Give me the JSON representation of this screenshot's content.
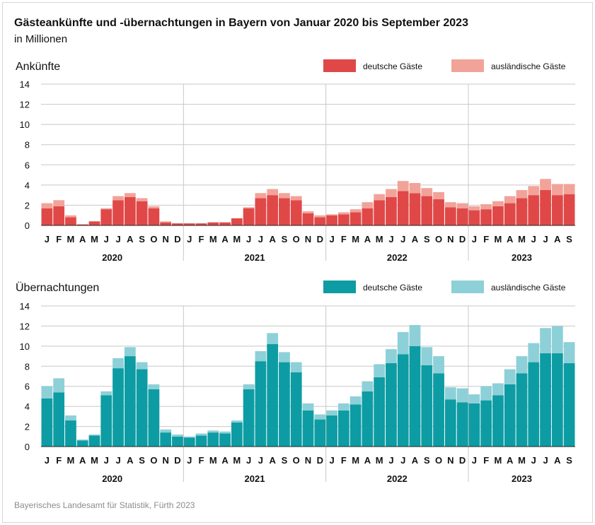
{
  "title": "Gästeankünfte und -übernachtungen in Bayern von Januar 2020 bis September 2023",
  "subtitle": "in Millionen",
  "source": "Bayerisches Landesamt für Statistik, Fürth 2023",
  "colors": {
    "arrivals_domestic": "#e04848",
    "arrivals_foreign": "#f2a399",
    "nights_domestic": "#0d9ca3",
    "nights_foreign": "#8dd0d8",
    "grid": "#c8c8c8"
  },
  "chart_data": [
    {
      "type": "bar",
      "stacked": true,
      "title": "Ankünfte",
      "ylim": [
        0,
        14
      ],
      "yticks": [
        0,
        2,
        4,
        6,
        8,
        10,
        12,
        14
      ],
      "grid": true,
      "legend_position": "top-right",
      "months": [
        "J",
        "F",
        "M",
        "A",
        "M",
        "J",
        "J",
        "A",
        "S",
        "O",
        "N",
        "D",
        "J",
        "F",
        "M",
        "A",
        "M",
        "J",
        "J",
        "A",
        "S",
        "O",
        "N",
        "D",
        "J",
        "F",
        "M",
        "A",
        "M",
        "J",
        "J",
        "A",
        "S",
        "O",
        "N",
        "D",
        "J",
        "F",
        "M",
        "A",
        "M",
        "J",
        "J",
        "A",
        "S"
      ],
      "years": [
        {
          "label": "2020",
          "start": 0,
          "count": 12
        },
        {
          "label": "2021",
          "start": 12,
          "count": 12
        },
        {
          "label": "2022",
          "start": 24,
          "count": 12
        },
        {
          "label": "2023",
          "start": 36,
          "count": 9
        }
      ],
      "series": [
        {
          "name": "deutsche Gäste",
          "values": [
            1.7,
            1.9,
            0.8,
            0.1,
            0.4,
            1.6,
            2.5,
            2.8,
            2.4,
            1.7,
            0.3,
            0.2,
            0.2,
            0.2,
            0.3,
            0.3,
            0.7,
            1.7,
            2.7,
            3.0,
            2.7,
            2.5,
            1.2,
            0.8,
            1.0,
            1.1,
            1.3,
            1.7,
            2.5,
            2.8,
            3.4,
            3.2,
            2.9,
            2.6,
            1.8,
            1.7,
            1.5,
            1.6,
            1.9,
            2.2,
            2.7,
            3.0,
            3.5,
            3.0,
            3.1
          ]
        },
        {
          "name": "ausländische Gäste",
          "values": [
            0.5,
            0.6,
            0.2,
            0.0,
            0.0,
            0.1,
            0.4,
            0.4,
            0.3,
            0.2,
            0.1,
            0.0,
            0.0,
            0.0,
            0.0,
            0.0,
            0.0,
            0.1,
            0.5,
            0.6,
            0.5,
            0.4,
            0.2,
            0.2,
            0.1,
            0.2,
            0.3,
            0.6,
            0.6,
            0.8,
            1.0,
            1.0,
            0.8,
            0.7,
            0.5,
            0.5,
            0.4,
            0.5,
            0.5,
            0.7,
            0.8,
            0.9,
            1.1,
            1.1,
            1.0
          ]
        }
      ]
    },
    {
      "type": "bar",
      "stacked": true,
      "title": "Übernachtungen",
      "ylim": [
        0,
        14
      ],
      "yticks": [
        0,
        2,
        4,
        6,
        8,
        10,
        12,
        14
      ],
      "grid": true,
      "legend_position": "top-right",
      "months": [
        "J",
        "F",
        "M",
        "A",
        "M",
        "J",
        "J",
        "A",
        "S",
        "O",
        "N",
        "D",
        "J",
        "F",
        "M",
        "A",
        "M",
        "J",
        "J",
        "A",
        "S",
        "O",
        "N",
        "D",
        "J",
        "F",
        "M",
        "A",
        "M",
        "J",
        "J",
        "A",
        "S",
        "O",
        "N",
        "D",
        "J",
        "F",
        "M",
        "A",
        "M",
        "J",
        "J",
        "A",
        "S"
      ],
      "years": [
        {
          "label": "2020",
          "start": 0,
          "count": 12
        },
        {
          "label": "2021",
          "start": 12,
          "count": 12
        },
        {
          "label": "2022",
          "start": 24,
          "count": 12
        },
        {
          "label": "2023",
          "start": 36,
          "count": 9
        }
      ],
      "series": [
        {
          "name": "deutsche Gäste",
          "values": [
            4.8,
            5.4,
            2.6,
            0.6,
            1.1,
            5.1,
            7.8,
            9.0,
            7.7,
            5.7,
            1.4,
            1.0,
            0.9,
            1.1,
            1.4,
            1.3,
            2.4,
            5.7,
            8.5,
            10.2,
            8.4,
            7.4,
            3.6,
            2.7,
            3.1,
            3.6,
            4.2,
            5.5,
            6.9,
            8.3,
            9.2,
            10.0,
            8.1,
            7.3,
            4.7,
            4.4,
            4.3,
            4.6,
            5.1,
            6.2,
            7.3,
            8.4,
            9.3,
            9.3,
            8.3
          ]
        },
        {
          "name": "ausländische Gäste",
          "values": [
            1.2,
            1.4,
            0.5,
            0.1,
            0.1,
            0.4,
            1.0,
            0.9,
            0.7,
            0.5,
            0.3,
            0.2,
            0.1,
            0.2,
            0.2,
            0.2,
            0.2,
            0.5,
            1.0,
            1.1,
            1.0,
            1.0,
            0.7,
            0.5,
            0.5,
            0.7,
            0.8,
            1.0,
            1.3,
            1.4,
            2.2,
            2.1,
            1.8,
            1.7,
            1.2,
            1.4,
            0.9,
            1.4,
            1.2,
            1.5,
            1.7,
            1.9,
            2.5,
            2.7,
            2.1
          ]
        }
      ]
    }
  ]
}
